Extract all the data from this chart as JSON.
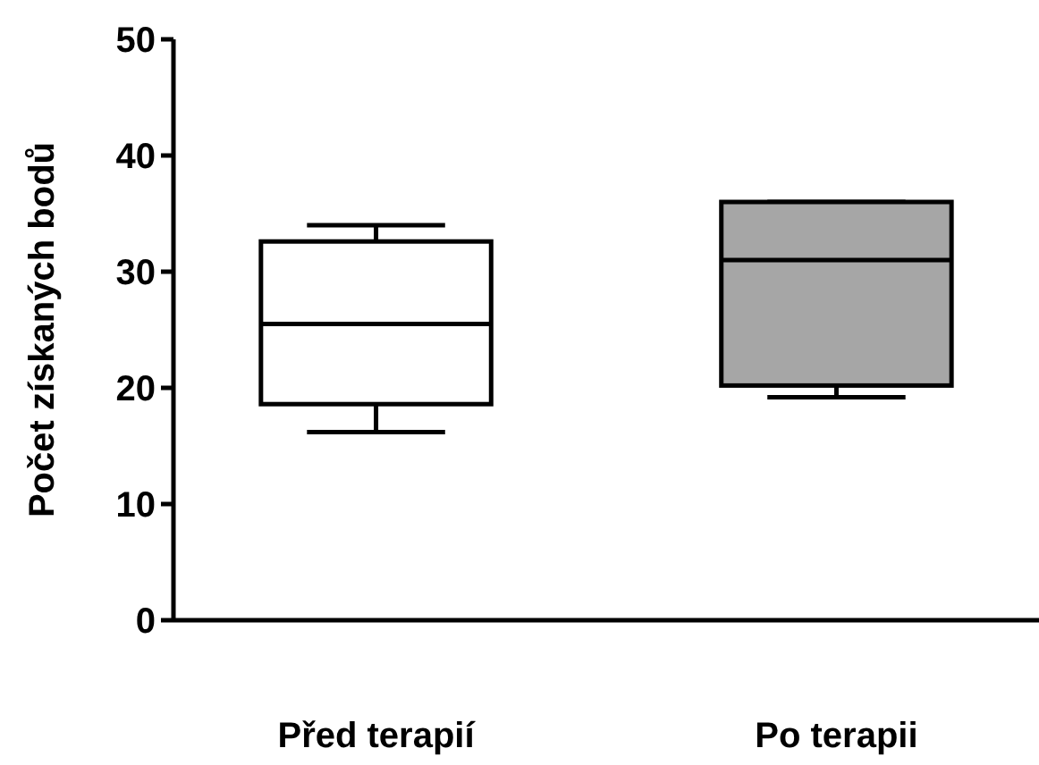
{
  "chart_data": {
    "type": "box",
    "ylabel": "Počet získaných bodů",
    "categories": [
      "Před terapií",
      "Po terapii"
    ],
    "boxes": [
      {
        "low": 16.2,
        "q1": 18.6,
        "median": 25.5,
        "q3": 32.6,
        "high": 34
      },
      {
        "low": 19.2,
        "q1": 20.2,
        "median": 31,
        "q3": 36,
        "high": 36
      }
    ],
    "colors": [
      "#ffffff",
      "#a6a6a6"
    ],
    "ylim": [
      0,
      50
    ],
    "yticks": [
      0,
      10,
      20,
      30,
      40,
      50
    ],
    "grid": false
  }
}
